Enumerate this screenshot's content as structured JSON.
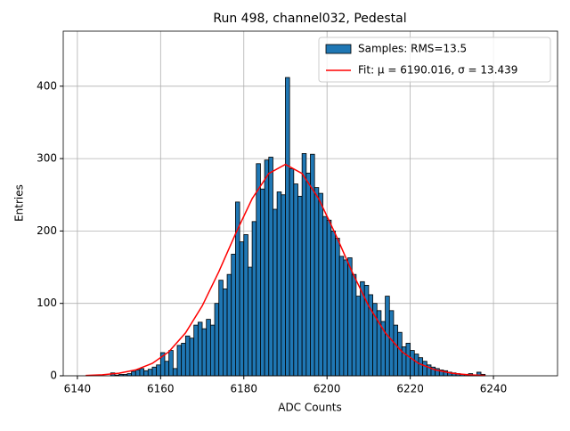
{
  "chart_data": {
    "type": "histogram",
    "title": "Run 498, channel032, Pedestal",
    "xlabel": "ADC Counts",
    "ylabel": "Entries",
    "bins": [
      6142,
      6143,
      6144,
      6145,
      6146,
      6147,
      6148,
      6149,
      6150,
      6151,
      6152,
      6153,
      6154,
      6155,
      6156,
      6157,
      6158,
      6159,
      6160,
      6161,
      6162,
      6163,
      6164,
      6165,
      6166,
      6167,
      6168,
      6169,
      6170,
      6171,
      6172,
      6173,
      6174,
      6175,
      6176,
      6177,
      6178,
      6179,
      6180,
      6181,
      6182,
      6183,
      6184,
      6185,
      6186,
      6187,
      6188,
      6189,
      6190,
      6191,
      6192,
      6193,
      6194,
      6195,
      6196,
      6197,
      6198,
      6199,
      6200,
      6201,
      6202,
      6203,
      6204,
      6205,
      6206,
      6207,
      6208,
      6209,
      6210,
      6211,
      6212,
      6213,
      6214,
      6215,
      6216,
      6217,
      6218,
      6219,
      6220,
      6221,
      6222,
      6223,
      6224,
      6225,
      6226,
      6227,
      6228,
      6229,
      6230,
      6231,
      6232,
      6233,
      6234,
      6235,
      6236,
      6237,
      6238,
      6239,
      6240,
      6241,
      6242,
      6243,
      6244,
      6245,
      6246,
      6247,
      6248,
      6249,
      6250
    ],
    "series": [
      {
        "name": "Samples: RMS=13.5",
        "color": "#1f77b4",
        "values": [
          0,
          0,
          0,
          0,
          0,
          0,
          4,
          1,
          2,
          2,
          3,
          6,
          8,
          10,
          7,
          9,
          12,
          15,
          32,
          20,
          35,
          10,
          42,
          45,
          55,
          52,
          70,
          74,
          65,
          78,
          70,
          100,
          132,
          120,
          140,
          168,
          240,
          185,
          195,
          150,
          213,
          293,
          258,
          298,
          302,
          230,
          254,
          250,
          412,
          286,
          265,
          248,
          307,
          280,
          306,
          260,
          252,
          220,
          215,
          200,
          190,
          165,
          160,
          163,
          140,
          110,
          130,
          125,
          112,
          100,
          90,
          75,
          110,
          90,
          70,
          60,
          40,
          45,
          35,
          30,
          25,
          20,
          15,
          12,
          10,
          8,
          7,
          5,
          4,
          3,
          2,
          2,
          3,
          1,
          5,
          2,
          0,
          0,
          0,
          0,
          0,
          0,
          0,
          0,
          0,
          0,
          0,
          0
        ]
      },
      {
        "name": "Fit: μ = 6190.016, σ = 13.439",
        "color": "#ff0000",
        "x": [
          6142,
          6146,
          6150,
          6154,
          6158,
          6162,
          6166,
          6170,
          6174,
          6178,
          6182,
          6186,
          6190,
          6194,
          6198,
          6202,
          6206,
          6210,
          6214,
          6218,
          6222,
          6226,
          6230,
          6234,
          6238
        ],
        "values": [
          0.5,
          1.4,
          3.5,
          8.1,
          17.1,
          33.3,
          59.3,
          96.5,
          143.8,
          196.0,
          244.6,
          279.4,
          292,
          279.4,
          244.6,
          196.0,
          143.8,
          96.5,
          59.3,
          33.3,
          17.1,
          8.1,
          3.5,
          1.4,
          0.5
        ]
      }
    ],
    "xlim": [
      6136.6,
      6255.4
    ],
    "xticks": [
      6140,
      6160,
      6180,
      6200,
      6220,
      6240
    ],
    "ylim": [
      0,
      476
    ],
    "yticks": [
      0,
      100,
      200,
      300,
      400
    ],
    "grid": true,
    "legend": "upper right"
  }
}
